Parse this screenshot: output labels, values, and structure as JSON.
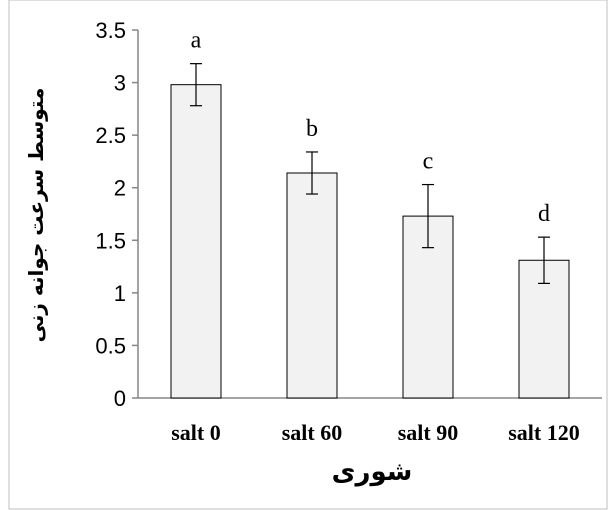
{
  "chart_data": {
    "type": "bar",
    "categories": [
      "salt 0",
      "salt 60",
      "salt 90",
      "salt 120"
    ],
    "values": [
      2.98,
      2.14,
      1.73,
      1.31
    ],
    "error": [
      0.2,
      0.2,
      0.3,
      0.22
    ],
    "data_labels": [
      "a",
      "b",
      "c",
      "d"
    ],
    "title": "",
    "xlabel": "شوری",
    "ylabel": "متوسط سرعت جوانه زنی",
    "ylim": [
      0,
      3.5
    ],
    "yticks": [
      "0",
      "0.5",
      "1",
      "1.5",
      "2",
      "2.5",
      "3",
      "3.5"
    ],
    "grid": false,
    "legend": "none",
    "colors": {
      "bar_fill": "#f2f2f2",
      "bar_stroke": "#000000",
      "axis": "#868686",
      "frame": "#bfbfbf"
    }
  }
}
